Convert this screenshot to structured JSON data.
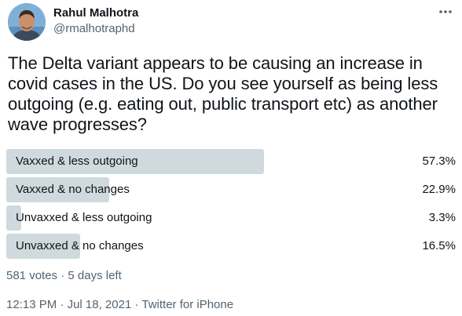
{
  "author": {
    "display_name": "Rahul Malhotra",
    "handle": "@rmalhotraphd"
  },
  "tweet": {
    "text": "The Delta variant appears to be causing an increase in covid cases in the US. Do you see yourself as being less outgoing (e.g. eating out, public transport etc) as another wave progresses?"
  },
  "poll": {
    "options": [
      {
        "label": "Vaxxed & less outgoing",
        "percent_text": "57.3%",
        "percent": 57.3
      },
      {
        "label": "Vaxxed & no changes",
        "percent_text": "22.9%",
        "percent": 22.9
      },
      {
        "label": "Unvaxxed & less outgoing",
        "percent_text": "3.3%",
        "percent": 3.3
      },
      {
        "label": "Unvaxxed & no changes",
        "percent_text": "16.5%",
        "percent": 16.5
      }
    ],
    "votes_text": "581 votes",
    "separator": " · ",
    "time_left_text": "5 days left"
  },
  "meta": {
    "time": "12:13 PM",
    "separator": " · ",
    "date": "Jul 18, 2021",
    "source": "Twitter for iPhone"
  },
  "icons": {
    "more": "more-horizontal-icon",
    "avatar": "avatar"
  },
  "colors": {
    "bar": "#cfd9de",
    "secondary_text": "#536471",
    "primary_text": "#0f1419"
  }
}
